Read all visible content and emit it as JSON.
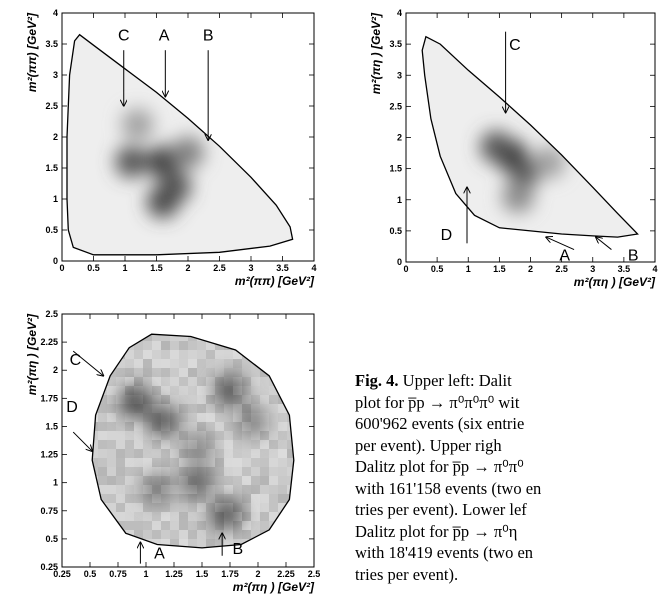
{
  "chart_data": [
    {
      "type": "heatmap",
      "panel": "upper-left",
      "xlabel": "m²(ππ)  [GeV²]",
      "ylabel": "m²(ππ)  [GeV²]",
      "xlim": [
        0,
        4
      ],
      "ylim": [
        0,
        4
      ],
      "xticks": [
        "0",
        "0.5",
        "1",
        "1.5",
        "2",
        "2.5",
        "3",
        "3.5",
        "4"
      ],
      "yticks": [
        "0",
        "0.5",
        "1",
        "1.5",
        "2",
        "2.5",
        "3",
        "3.5",
        "4"
      ],
      "boundary": [
        [
          0.2,
          3.55
        ],
        [
          0.28,
          3.65
        ],
        [
          0.5,
          3.48
        ],
        [
          1,
          3.1
        ],
        [
          1.5,
          2.72
        ],
        [
          2,
          2.3
        ],
        [
          2.5,
          1.85
        ],
        [
          3,
          1.35
        ],
        [
          3.4,
          0.9
        ],
        [
          3.62,
          0.55
        ],
        [
          3.66,
          0.35
        ],
        [
          3.3,
          0.24
        ],
        [
          2.5,
          0.14
        ],
        [
          1.5,
          0.1
        ],
        [
          0.5,
          0.1
        ],
        [
          0.18,
          0.22
        ],
        [
          0.1,
          0.5
        ],
        [
          0.08,
          1
        ],
        [
          0.08,
          2
        ],
        [
          0.12,
          3
        ]
      ],
      "density_peaks": [
        {
          "x": 1.6,
          "y": 1.6,
          "weight": 0.8
        },
        {
          "x": 1.1,
          "y": 1.6,
          "weight": 0.7
        },
        {
          "x": 1.8,
          "y": 1.2,
          "weight": 0.7
        },
        {
          "x": 1.6,
          "y": 0.95,
          "weight": 0.75
        },
        {
          "x": 2.0,
          "y": 1.75,
          "weight": 0.5
        },
        {
          "x": 1.2,
          "y": 2.2,
          "weight": 0.35
        }
      ],
      "annotations": [
        {
          "label": "C",
          "x": 0.98,
          "y": 3.65,
          "arrow_from": [
            0.98,
            3.4
          ],
          "arrow_to": [
            0.98,
            2.5
          ]
        },
        {
          "label": "A",
          "x": 1.62,
          "y": 3.65,
          "arrow_from": [
            1.64,
            3.4
          ],
          "arrow_to": [
            1.64,
            2.65
          ]
        },
        {
          "label": "B",
          "x": 2.32,
          "y": 3.65,
          "arrow_from": [
            2.32,
            3.4
          ],
          "arrow_to": [
            2.32,
            1.95
          ]
        }
      ]
    },
    {
      "type": "heatmap",
      "panel": "upper-right",
      "xlabel": "m²(πη )  [GeV²]",
      "ylabel": "m²(πη )  [GeV²]",
      "xlim": [
        0,
        4
      ],
      "ylim": [
        0,
        4
      ],
      "xticks": [
        "0",
        "0.5",
        "1",
        "1.5",
        "2",
        "2.5",
        "3",
        "3.5",
        "4"
      ],
      "yticks": [
        "0",
        "0.5",
        "1",
        "1.5",
        "2",
        "2.5",
        "3",
        "3.5",
        "4"
      ],
      "boundary": [
        [
          0.32,
          3.62
        ],
        [
          0.55,
          3.5
        ],
        [
          1,
          3.08
        ],
        [
          1.5,
          2.65
        ],
        [
          2,
          2.2
        ],
        [
          2.5,
          1.72
        ],
        [
          3,
          1.2
        ],
        [
          3.4,
          0.78
        ],
        [
          3.72,
          0.45
        ],
        [
          3.4,
          0.4
        ],
        [
          3,
          0.42
        ],
        [
          2.5,
          0.45
        ],
        [
          2,
          0.5
        ],
        [
          1.5,
          0.55
        ],
        [
          1.1,
          0.75
        ],
        [
          0.8,
          1.1
        ],
        [
          0.55,
          1.7
        ],
        [
          0.4,
          2.3
        ],
        [
          0.3,
          3
        ],
        [
          0.26,
          3.4
        ]
      ],
      "density_peaks": [
        {
          "x": 1.7,
          "y": 1.7,
          "weight": 0.9
        },
        {
          "x": 1.45,
          "y": 1.85,
          "weight": 0.7
        },
        {
          "x": 1.9,
          "y": 1.45,
          "weight": 0.7
        },
        {
          "x": 1.8,
          "y": 1.05,
          "weight": 0.45
        },
        {
          "x": 2.3,
          "y": 1.6,
          "weight": 0.35
        }
      ],
      "annotations": [
        {
          "label": "C",
          "x": 1.75,
          "y": 3.5,
          "arrow_from": [
            1.6,
            3.7
          ],
          "arrow_to": [
            1.6,
            2.4
          ]
        },
        {
          "label": "D",
          "x": 0.65,
          "y": 0.45,
          "arrow_from": [
            0.98,
            0.3
          ],
          "arrow_to": [
            0.98,
            1.2
          ]
        },
        {
          "label": "A",
          "x": 2.55,
          "y": 0.12,
          "arrow_from": [
            2.7,
            0.2
          ],
          "arrow_to": [
            2.25,
            0.4
          ]
        },
        {
          "label": "B",
          "x": 3.65,
          "y": 0.12,
          "arrow_from": [
            3.3,
            0.2
          ],
          "arrow_to": [
            3.05,
            0.4
          ]
        }
      ]
    },
    {
      "type": "heatmap",
      "panel": "lower-left",
      "xlabel": "m²(πη )  [GeV²]",
      "ylabel": "m²(πη )  [GeV²]",
      "xlim": [
        0.25,
        2.5
      ],
      "ylim": [
        0.25,
        2.5
      ],
      "xticks": [
        "0.25",
        "0.5",
        "0.75",
        "1",
        "1.25",
        "1.5",
        "1.75",
        "2",
        "2.25",
        "2.5"
      ],
      "yticks": [
        "0.25",
        "0.5",
        "0.75",
        "1",
        "1.25",
        "1.5",
        "1.75",
        "2",
        "2.25",
        "2.5"
      ],
      "boundary": [
        [
          1.05,
          2.32
        ],
        [
          1.4,
          2.3
        ],
        [
          1.8,
          2.18
        ],
        [
          2.1,
          1.95
        ],
        [
          2.28,
          1.6
        ],
        [
          2.32,
          1.2
        ],
        [
          2.28,
          0.85
        ],
        [
          2.1,
          0.58
        ],
        [
          1.85,
          0.45
        ],
        [
          1.5,
          0.42
        ],
        [
          1.1,
          0.45
        ],
        [
          0.82,
          0.55
        ],
        [
          0.6,
          0.85
        ],
        [
          0.52,
          1.2
        ],
        [
          0.55,
          1.6
        ],
        [
          0.68,
          1.95
        ],
        [
          0.85,
          2.2
        ]
      ],
      "density_peaks": [
        {
          "x": 0.9,
          "y": 1.72,
          "weight": 0.7
        },
        {
          "x": 1.15,
          "y": 1.55,
          "weight": 0.65
        },
        {
          "x": 1.75,
          "y": 1.82,
          "weight": 0.6
        },
        {
          "x": 1.95,
          "y": 1.55,
          "weight": 0.45
        },
        {
          "x": 1.45,
          "y": 1.0,
          "weight": 0.55
        },
        {
          "x": 1.72,
          "y": 0.72,
          "weight": 0.65
        },
        {
          "x": 1.1,
          "y": 0.95,
          "weight": 0.45
        },
        {
          "x": 1.45,
          "y": 1.3,
          "weight": 0.4
        }
      ],
      "annotations": [
        {
          "label": "C",
          "x": 0.37,
          "y": 2.1,
          "arrow_from": [
            0.35,
            2.17
          ],
          "arrow_to": [
            0.62,
            1.95
          ]
        },
        {
          "label": "D",
          "x": 0.34,
          "y": 1.68,
          "arrow_from": [
            0.35,
            1.45
          ],
          "arrow_to": [
            0.52,
            1.28
          ]
        },
        {
          "label": "A",
          "x": 1.12,
          "y": 0.38,
          "arrow_from": [
            0.95,
            0.28
          ],
          "arrow_to": [
            0.95,
            0.47
          ]
        },
        {
          "label": "B",
          "x": 1.82,
          "y": 0.42,
          "arrow_from": [
            1.68,
            0.35
          ],
          "arrow_to": [
            1.68,
            0.55
          ]
        }
      ]
    }
  ],
  "caption": {
    "head": "Fig. 4.",
    "lines": [
      "Upper left: Dalit",
      "plot for p̅p → π⁰π⁰π⁰ wit",
      "600'962 events (six entrie",
      "per event). Upper righ",
      "Dalitz plot for p̅p → π⁰π⁰",
      "with 161'158 events (two en",
      "tries per event). Lower lef",
      "Dalitz plot for p̅p → π⁰η",
      "with 18'419 events (two en",
      "tries per event)."
    ]
  }
}
